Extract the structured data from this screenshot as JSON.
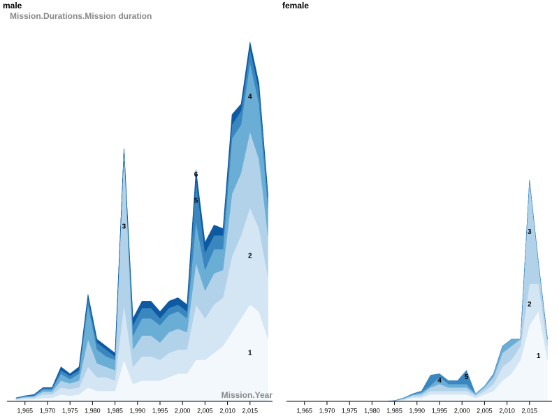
{
  "chart_data": [
    {
      "type": "area",
      "stacked": true,
      "title": "male",
      "y_label": "Mission.Durations.Mission duration",
      "x_label": "Mission.Year",
      "xlim": [
        1961,
        2020
      ],
      "ylim": [
        0,
        540
      ],
      "xticks": [
        {
          "value": 1965,
          "label": "1,965"
        },
        {
          "value": 1970,
          "label": "1,970"
        },
        {
          "value": 1975,
          "label": "1,975"
        },
        {
          "value": 1980,
          "label": "1,980"
        },
        {
          "value": 1985,
          "label": "1,985"
        },
        {
          "value": 1990,
          "label": "1,990"
        },
        {
          "value": 1995,
          "label": "1,995"
        },
        {
          "value": 2000,
          "label": "2,000"
        },
        {
          "value": 2005,
          "label": "2,005"
        },
        {
          "value": 2010,
          "label": "2,010"
        },
        {
          "value": 2015,
          "label": "2,015"
        }
      ],
      "x": [
        1963,
        1965,
        1967,
        1969,
        1971,
        1973,
        1975,
        1977,
        1979,
        1981,
        1983,
        1985,
        1987,
        1989,
        1991,
        1993,
        1995,
        1997,
        1999,
        2001,
        2003,
        2005,
        2007,
        2009,
        2011,
        2013,
        2015,
        2017,
        2019
      ],
      "series": [
        {
          "name": "1",
          "color": "#f3f8fd",
          "values": [
            2,
            3,
            3,
            5,
            5,
            10,
            8,
            10,
            20,
            15,
            15,
            15,
            60,
            25,
            30,
            30,
            30,
            35,
            40,
            40,
            60,
            60,
            70,
            80,
            100,
            120,
            140,
            130,
            90
          ]
        },
        {
          "name": "2",
          "color": "#d4e5f4",
          "values": [
            1,
            2,
            2,
            5,
            5,
            10,
            10,
            10,
            30,
            20,
            20,
            15,
            80,
            25,
            35,
            35,
            30,
            35,
            35,
            35,
            80,
            60,
            70,
            70,
            110,
            120,
            140,
            120,
            90
          ]
        },
        {
          "name": "3",
          "color": "#b2d2ea",
          "values": [
            1,
            1,
            2,
            4,
            4,
            10,
            8,
            10,
            40,
            20,
            15,
            15,
            225,
            25,
            30,
            30,
            25,
            30,
            30,
            25,
            60,
            40,
            45,
            40,
            90,
            90,
            110,
            100,
            60
          ]
        },
        {
          "name": "4",
          "color": "#6aaed6",
          "values": [
            1,
            1,
            1,
            3,
            3,
            10,
            6,
            10,
            50,
            20,
            15,
            15,
            0,
            20,
            25,
            25,
            25,
            25,
            25,
            20,
            60,
            30,
            35,
            30,
            80,
            70,
            100,
            80,
            40
          ]
        },
        {
          "name": "5",
          "color": "#3a87c0",
          "values": [
            0,
            1,
            1,
            2,
            2,
            5,
            5,
            5,
            10,
            10,
            10,
            5,
            0,
            15,
            15,
            15,
            10,
            10,
            10,
            10,
            60,
            25,
            20,
            20,
            20,
            20,
            20,
            20,
            15
          ]
        },
        {
          "name": "6",
          "color": "#0d5aa3",
          "values": [
            0,
            0,
            1,
            1,
            1,
            5,
            3,
            5,
            5,
            5,
            5,
            5,
            0,
            10,
            10,
            10,
            10,
            10,
            10,
            10,
            15,
            15,
            15,
            10,
            15,
            10,
            10,
            10,
            5
          ]
        }
      ]
    },
    {
      "type": "area",
      "stacked": true,
      "title": "female",
      "xlim": [
        1961,
        2020
      ],
      "ylim": [
        0,
        540
      ],
      "xticks": [
        {
          "value": 1965,
          "label": "1,965"
        },
        {
          "value": 1970,
          "label": "1,970"
        },
        {
          "value": 1975,
          "label": "1,975"
        },
        {
          "value": 1980,
          "label": "1,980"
        },
        {
          "value": 1985,
          "label": "1,985"
        },
        {
          "value": 1990,
          "label": "1,990"
        },
        {
          "value": 1995,
          "label": "1,995"
        },
        {
          "value": 2000,
          "label": "2,000"
        },
        {
          "value": 2005,
          "label": "2,005"
        },
        {
          "value": 2010,
          "label": "2,010"
        },
        {
          "value": 2015,
          "label": "2,015"
        }
      ],
      "x": [
        1963,
        1965,
        1967,
        1969,
        1971,
        1973,
        1975,
        1977,
        1979,
        1981,
        1983,
        1985,
        1987,
        1989,
        1991,
        1993,
        1995,
        1997,
        1999,
        2001,
        2003,
        2005,
        2007,
        2009,
        2011,
        2013,
        2015,
        2017,
        2019
      ],
      "series": [
        {
          "name": "1",
          "color": "#f3f8fd",
          "values": [
            0,
            0,
            0,
            0,
            0,
            0,
            0,
            0,
            0,
            0,
            0,
            1,
            2,
            5,
            5,
            10,
            10,
            10,
            10,
            10,
            5,
            10,
            15,
            30,
            40,
            60,
            110,
            130,
            60
          ]
        },
        {
          "name": "2",
          "color": "#d4e5f4",
          "values": [
            0,
            0,
            0,
            0,
            0,
            0,
            0,
            0,
            0,
            0,
            0,
            0,
            1,
            2,
            3,
            5,
            5,
            5,
            5,
            5,
            3,
            5,
            10,
            20,
            20,
            20,
            60,
            40,
            20
          ]
        },
        {
          "name": "3",
          "color": "#b2d2ea",
          "values": [
            0,
            0,
            0,
            0,
            0,
            0,
            0,
            0,
            0,
            0,
            0,
            0,
            1,
            2,
            3,
            5,
            10,
            5,
            5,
            5,
            2,
            5,
            10,
            20,
            20,
            10,
            150,
            30,
            10
          ]
        },
        {
          "name": "4",
          "color": "#6aaed6",
          "values": [
            0,
            0,
            0,
            0,
            0,
            0,
            0,
            0,
            0,
            0,
            0,
            0,
            1,
            1,
            2,
            3,
            10,
            5,
            5,
            5,
            1,
            2,
            5,
            10,
            10,
            0,
            0,
            0,
            0
          ]
        },
        {
          "name": "5",
          "color": "#3a87c0",
          "values": [
            0,
            0,
            0,
            0,
            0,
            0,
            0,
            0,
            0,
            0,
            0,
            0,
            0,
            1,
            2,
            15,
            5,
            5,
            5,
            20,
            0,
            0,
            0,
            0,
            0,
            0,
            0,
            0,
            0
          ]
        }
      ]
    }
  ]
}
